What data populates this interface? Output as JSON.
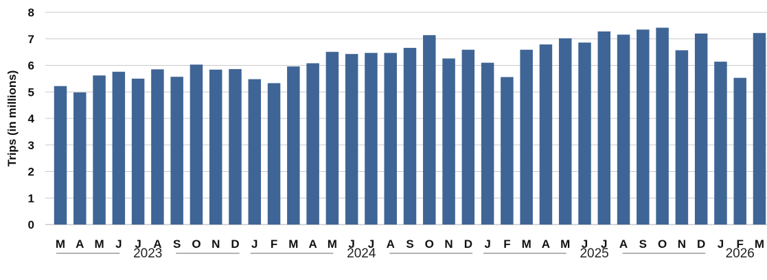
{
  "chart_data": {
    "type": "bar",
    "title": "",
    "xlabel": "",
    "ylabel": "Trips (in millions)",
    "ylim": [
      0,
      8
    ],
    "yticks": [
      0,
      1,
      2,
      3,
      4,
      5,
      6,
      7,
      8
    ],
    "grid": true,
    "bar_color": "#3f6596",
    "grid_color": "#c8c8c8",
    "categories": [
      "M",
      "A",
      "M",
      "J",
      "J",
      "A",
      "S",
      "O",
      "N",
      "D",
      "J",
      "F",
      "M",
      "A",
      "M",
      "J",
      "J",
      "A",
      "S",
      "O",
      "N",
      "D",
      "J",
      "F",
      "M",
      "A",
      "M",
      "J",
      "J",
      "A",
      "S",
      "O",
      "N",
      "D",
      "J",
      "F",
      "M"
    ],
    "values": [
      5.22,
      4.98,
      5.62,
      5.76,
      5.5,
      5.85,
      5.57,
      6.03,
      5.84,
      5.86,
      5.48,
      5.33,
      5.96,
      6.08,
      6.51,
      6.43,
      6.47,
      6.47,
      6.66,
      7.14,
      6.26,
      6.59,
      6.1,
      5.56,
      6.59,
      6.79,
      7.02,
      6.86,
      7.28,
      7.16,
      7.35,
      7.42,
      6.57,
      7.2,
      6.14,
      5.53,
      7.22
    ],
    "year_groups": [
      {
        "label": "2023",
        "start": 0,
        "end": 9
      },
      {
        "label": "2024",
        "start": 10,
        "end": 21
      },
      {
        "label": "2025",
        "start": 22,
        "end": 33
      },
      {
        "label": "2026",
        "start": 34,
        "end": 36
      }
    ]
  }
}
